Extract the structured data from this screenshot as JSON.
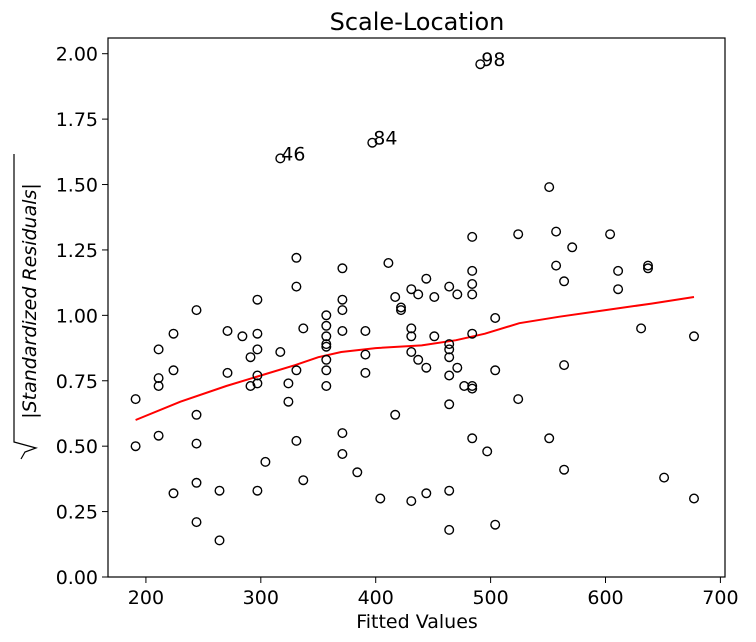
{
  "chart_data": {
    "type": "scatter",
    "title": "Scale-Location",
    "xlabel": "Fitted Values",
    "ylabel": "|Standardized Residuals|",
    "xlim": [
      167,
      704
    ],
    "ylim": [
      0,
      2.06
    ],
    "xticks": [
      {
        "value": 200,
        "label": "200"
      },
      {
        "value": 300,
        "label": "300"
      },
      {
        "value": 400,
        "label": "400"
      },
      {
        "value": 500,
        "label": "500"
      },
      {
        "value": 600,
        "label": "600"
      },
      {
        "value": 700,
        "label": "700"
      }
    ],
    "yticks": [
      {
        "value": 0.0,
        "label": "0.00"
      },
      {
        "value": 0.25,
        "label": "0.25"
      },
      {
        "value": 0.5,
        "label": "0.50"
      },
      {
        "value": 0.75,
        "label": "0.75"
      },
      {
        "value": 1.0,
        "label": "1.00"
      },
      {
        "value": 1.25,
        "label": "1.25"
      },
      {
        "value": 1.5,
        "label": "1.50"
      },
      {
        "value": 1.75,
        "label": "1.75"
      },
      {
        "value": 2.0,
        "label": "2.00"
      }
    ],
    "grid": false,
    "colors": {
      "points": "#000000",
      "trend": "#ff0000"
    },
    "points": [
      [
        191,
        0.68
      ],
      [
        191,
        0.5
      ],
      [
        211,
        0.87
      ],
      [
        211,
        0.76
      ],
      [
        211,
        0.73
      ],
      [
        211,
        0.54
      ],
      [
        224,
        0.93
      ],
      [
        224,
        0.79
      ],
      [
        224,
        0.32
      ],
      [
        244,
        1.02
      ],
      [
        244,
        0.62
      ],
      [
        244,
        0.51
      ],
      [
        244,
        0.36
      ],
      [
        244,
        0.21
      ],
      [
        264,
        0.33
      ],
      [
        264,
        0.14
      ],
      [
        271,
        0.94
      ],
      [
        271,
        0.78
      ],
      [
        284,
        0.92
      ],
      [
        291,
        0.84
      ],
      [
        291,
        0.73
      ],
      [
        297,
        1.06
      ],
      [
        297,
        0.93
      ],
      [
        297,
        0.87
      ],
      [
        297,
        0.77
      ],
      [
        297,
        0.74
      ],
      [
        297,
        0.33
      ],
      [
        304,
        0.44
      ],
      [
        317,
        0.86
      ],
      [
        324,
        0.74
      ],
      [
        324,
        0.67
      ],
      [
        331,
        1.22
      ],
      [
        331,
        1.11
      ],
      [
        331,
        0.79
      ],
      [
        331,
        0.52
      ],
      [
        337,
        0.95
      ],
      [
        337,
        0.37
      ],
      [
        317,
        1.6
      ],
      [
        357,
        1.0
      ],
      [
        357,
        0.96
      ],
      [
        357,
        0.92
      ],
      [
        357,
        0.89
      ],
      [
        357,
        0.88
      ],
      [
        357,
        0.83
      ],
      [
        357,
        0.79
      ],
      [
        357,
        0.73
      ],
      [
        371,
        1.18
      ],
      [
        371,
        1.06
      ],
      [
        371,
        1.02
      ],
      [
        371,
        0.94
      ],
      [
        371,
        0.55
      ],
      [
        371,
        0.47
      ],
      [
        384,
        0.4
      ],
      [
        391,
        0.94
      ],
      [
        391,
        0.85
      ],
      [
        391,
        0.78
      ],
      [
        397,
        1.66
      ],
      [
        404,
        0.3
      ],
      [
        411,
        1.2
      ],
      [
        417,
        1.07
      ],
      [
        417,
        0.62
      ],
      [
        422,
        1.03
      ],
      [
        422,
        1.02
      ],
      [
        431,
        1.1
      ],
      [
        431,
        0.95
      ],
      [
        431,
        0.92
      ],
      [
        431,
        0.86
      ],
      [
        431,
        0.29
      ],
      [
        437,
        1.08
      ],
      [
        437,
        0.83
      ],
      [
        444,
        1.14
      ],
      [
        444,
        0.8
      ],
      [
        444,
        0.32
      ],
      [
        451,
        1.07
      ],
      [
        451,
        0.92
      ],
      [
        464,
        1.11
      ],
      [
        464,
        0.89
      ],
      [
        464,
        0.87
      ],
      [
        464,
        0.84
      ],
      [
        464,
        0.77
      ],
      [
        464,
        0.66
      ],
      [
        464,
        0.33
      ],
      [
        464,
        0.18
      ],
      [
        471,
        1.08
      ],
      [
        471,
        0.8
      ],
      [
        477,
        0.73
      ],
      [
        484,
        1.3
      ],
      [
        484,
        1.17
      ],
      [
        484,
        1.12
      ],
      [
        484,
        1.08
      ],
      [
        484,
        0.93
      ],
      [
        484,
        0.73
      ],
      [
        484,
        0.72
      ],
      [
        484,
        0.53
      ],
      [
        491,
        1.96
      ],
      [
        497,
        0.48
      ],
      [
        504,
        0.99
      ],
      [
        504,
        0.79
      ],
      [
        504,
        0.2
      ],
      [
        524,
        1.31
      ],
      [
        524,
        0.68
      ],
      [
        551,
        1.49
      ],
      [
        551,
        0.53
      ],
      [
        557,
        1.32
      ],
      [
        557,
        1.19
      ],
      [
        564,
        1.13
      ],
      [
        564,
        0.81
      ],
      [
        564,
        0.41
      ],
      [
        571,
        1.26
      ],
      [
        604,
        1.31
      ],
      [
        611,
        1.17
      ],
      [
        611,
        1.1
      ],
      [
        631,
        0.95
      ],
      [
        637,
        1.19
      ],
      [
        637,
        1.18
      ],
      [
        651,
        0.38
      ],
      [
        677,
        0.92
      ],
      [
        677,
        0.3
      ]
    ],
    "trend_line": [
      [
        191,
        0.6
      ],
      [
        230,
        0.67
      ],
      [
        270,
        0.73
      ],
      [
        300,
        0.77
      ],
      [
        330,
        0.81
      ],
      [
        350,
        0.84
      ],
      [
        370,
        0.86
      ],
      [
        400,
        0.875
      ],
      [
        440,
        0.885
      ],
      [
        470,
        0.905
      ],
      [
        495,
        0.93
      ],
      [
        525,
        0.97
      ],
      [
        560,
        0.995
      ],
      [
        600,
        1.02
      ],
      [
        640,
        1.045
      ],
      [
        677,
        1.07
      ]
    ],
    "annotations": [
      {
        "label": "46",
        "x": 317,
        "y": 1.6
      },
      {
        "label": "84",
        "x": 397,
        "y": 1.66
      },
      {
        "label": "98",
        "x": 491,
        "y": 1.96
      }
    ]
  }
}
